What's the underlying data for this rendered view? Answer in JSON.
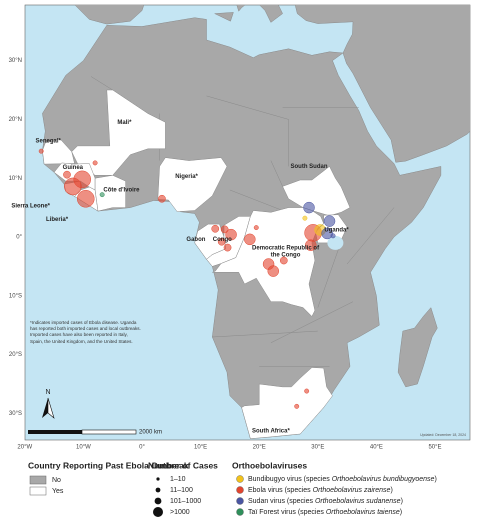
{
  "map": {
    "lat_labels": [
      "30°N",
      "20°N",
      "10°N",
      "0°",
      "10°S",
      "20°S",
      "30°S"
    ],
    "lon_labels": [
      "20°W",
      "10°W",
      "0°",
      "10°E",
      "20°E",
      "30°E",
      "40°E",
      "50°E"
    ],
    "countries": [
      {
        "name": "Mali*"
      },
      {
        "name": "Senegal*"
      },
      {
        "name": "Guinea"
      },
      {
        "name": "Sierra Leone*"
      },
      {
        "name": "Liberia*"
      },
      {
        "name": "Côte d'Ivoire"
      },
      {
        "name": "Nigeria*"
      },
      {
        "name": "South Sudan"
      },
      {
        "name": "Uganda*"
      },
      {
        "name": "Gabon"
      },
      {
        "name": "Congo"
      },
      {
        "name": "Democratic Republic of the Congo"
      },
      {
        "name": "South Africa*"
      }
    ],
    "footnote": "*Indicates imported cases of Ebola disease. Uganda has reported both imported cases and local outbreaks. Imported cases have also been reported in Italy, Spain, the United Kingdom, and the United States.",
    "north": "N",
    "scale": "2000 km",
    "updated": "Updated: December 18, 2024",
    "outbreaks": [
      {
        "lon": -11.8,
        "lat": 8.6,
        "cases": ">1000",
        "virus": "Ebola virus"
      },
      {
        "lon": -9.6,
        "lat": 6.5,
        "cases": ">1000",
        "virus": "Ebola virus"
      },
      {
        "lon": -10.2,
        "lat": 9.8,
        "cases": ">1000",
        "virus": "Ebola virus"
      },
      {
        "lon": -12.8,
        "lat": 10.6,
        "cases": "11–100",
        "virus": "Ebola virus"
      },
      {
        "lon": -17.2,
        "lat": 14.6,
        "cases": "1–10",
        "virus": "Ebola virus"
      },
      {
        "lon": -8.0,
        "lat": 12.6,
        "cases": "1–10",
        "virus": "Ebola virus"
      },
      {
        "lon": -6.8,
        "lat": 7.2,
        "cases": "1–10",
        "virus": "Taï Forest virus"
      },
      {
        "lon": 3.4,
        "lat": 6.5,
        "cases": "11–100",
        "virus": "Ebola virus"
      },
      {
        "lon": 12.5,
        "lat": 1.4,
        "cases": "11–100",
        "virus": "Ebola virus"
      },
      {
        "lon": 13.6,
        "lat": -0.8,
        "cases": "11–100",
        "virus": "Ebola virus"
      },
      {
        "lon": 14.1,
        "lat": 1.3,
        "cases": "11–100",
        "virus": "Ebola virus"
      },
      {
        "lon": 15.2,
        "lat": 0.4,
        "cases": "101–1000",
        "virus": "Ebola virus"
      },
      {
        "lon": 14.6,
        "lat": -1.8,
        "cases": "11–100",
        "virus": "Ebola virus"
      },
      {
        "lon": 19.5,
        "lat": 1.6,
        "cases": "1–10",
        "virus": "Ebola virus"
      },
      {
        "lon": 18.4,
        "lat": -0.4,
        "cases": "101–1000",
        "virus": "Ebola virus"
      },
      {
        "lon": 21.6,
        "lat": -4.6,
        "cases": "101–1000",
        "virus": "Ebola virus"
      },
      {
        "lon": 22.4,
        "lat": -5.8,
        "cases": "101–1000",
        "virus": "Ebola virus"
      },
      {
        "lon": 24.2,
        "lat": -4.0,
        "cases": "11–100",
        "virus": "Ebola virus"
      },
      {
        "lon": 29.2,
        "lat": 0.7,
        "cases": ">1000",
        "virus": "Ebola virus"
      },
      {
        "lon": 28.8,
        "lat": -1.4,
        "cases": "101–1000",
        "virus": "Ebola virus"
      },
      {
        "lon": 27.8,
        "lat": 3.2,
        "cases": "1–10",
        "virus": "Bundibugyo virus"
      },
      {
        "lon": 30.4,
        "lat": 1.2,
        "cases": "101–1000",
        "virus": "Bundibugyo virus"
      },
      {
        "lon": 28.5,
        "lat": 5.0,
        "cases": "101–1000",
        "virus": "Sudan virus"
      },
      {
        "lon": 32.0,
        "lat": 2.7,
        "cases": "101–1000",
        "virus": "Sudan virus"
      },
      {
        "lon": 31.6,
        "lat": 0.6,
        "cases": "101–1000",
        "virus": "Sudan virus"
      },
      {
        "lon": 32.6,
        "lat": 0.2,
        "cases": "1–10",
        "virus": "Sudan virus"
      },
      {
        "lon": 28.1,
        "lat": -26.2,
        "cases": "1–10",
        "virus": "Ebola virus"
      },
      {
        "lon": 26.4,
        "lat": -28.8,
        "cases": "1–10",
        "virus": "Ebola virus"
      }
    ]
  },
  "legend": {
    "status": {
      "title": "Country Reporting Past Ebola Outbreak",
      "items": [
        {
          "label": "No",
          "color": "#a8a8a8"
        },
        {
          "label": "Yes",
          "color": "#ffffff"
        }
      ]
    },
    "cases": {
      "title": "Number of Cases",
      "items": [
        "1–10",
        "11–100",
        "101–1000",
        ">1000"
      ]
    },
    "viruses": {
      "title": "Orthoebolaviruses",
      "open": "(species",
      "close": ")",
      "items": [
        {
          "name": "Bundibugyo virus",
          "species": "Orthoebolavirus bundibugyoense",
          "color": "#f2c21b"
        },
        {
          "name": "Ebola virus",
          "species": "Orthoebolavirus zairense",
          "color": "#e2452f"
        },
        {
          "name": "Sudan virus",
          "species": "Orthoebolavirus sudanense",
          "color": "#4a55a2"
        },
        {
          "name": "Taï Forest virus",
          "species": "Orthoebolavirus taiense",
          "color": "#2f8f5b"
        }
      ]
    }
  }
}
